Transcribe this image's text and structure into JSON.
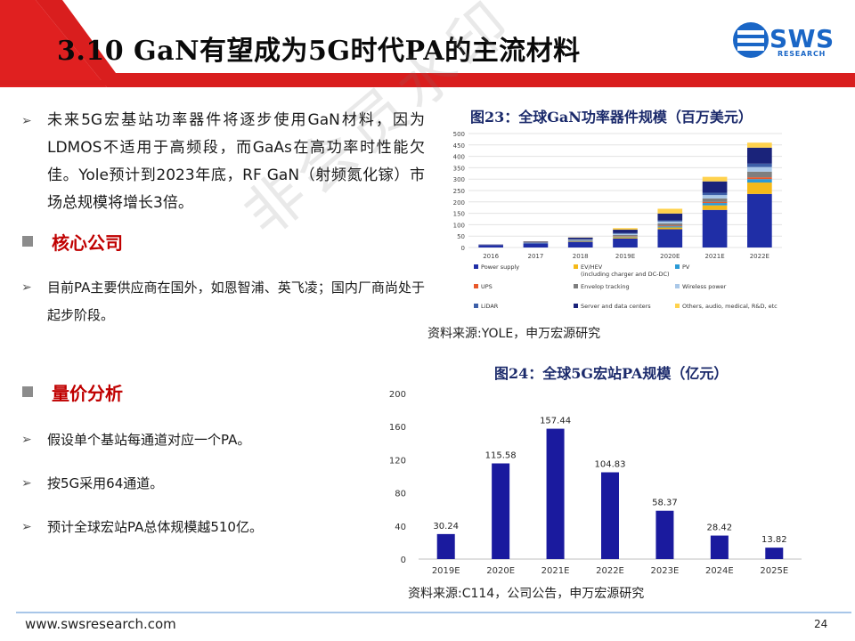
{
  "header": {
    "title": "3.10 GaN有望成为5G时代PA的主流材料",
    "logo_text": "SWS",
    "logo_sub": "RESEARCH",
    "colors": {
      "red_band": "#d91e1e",
      "logo_blue": "#1a66c6"
    }
  },
  "left": {
    "para1": "未来5G宏基站功率器件将逐步使用GaN材料，因为LDMOS不适用于高频段，而GaAs在高功率时性能欠佳。Yole预计到2023年底，RF GaN（射频氮化镓）市场总规模将增长3倍。",
    "section1": "核心公司",
    "para2": "目前PA主要供应商在国外，如恩智浦、英飞凌；国内厂商尚处于起步阶段。",
    "section2": "量价分析",
    "bullets": [
      "假设单个基站每通道对应一个PA。",
      "按5G采用64通道。",
      "预计全球宏站PA总体规模越510亿。"
    ],
    "bullet_glyph": "➢"
  },
  "fig23": {
    "title": "图23：全球GaN功率器件规模（百万美元）",
    "source": "资料来源:YOLE，申万宏源研究"
  },
  "fig24": {
    "title": "图24：全球5G宏站PA规模（亿元）",
    "source": "资料来源:C114，公司公告，申万宏源研究"
  },
  "chart_data": [
    {
      "type": "bar",
      "stacked": true,
      "title": "图23：全球GaN功率器件规模（百万美元）",
      "categories": [
        "2016",
        "2017",
        "2018",
        "2019E",
        "2020E",
        "2021E",
        "2022E"
      ],
      "ylim": [
        0,
        500
      ],
      "yticks": [
        0,
        50,
        100,
        150,
        200,
        250,
        300,
        350,
        400,
        450,
        500
      ],
      "legend_position": "bottom",
      "series": [
        {
          "name": "Power supply",
          "color": "#1f2ea6",
          "values": [
            10,
            18,
            25,
            40,
            80,
            165,
            235
          ]
        },
        {
          "name": "EV/HEV\n(including charger and DC-DC)",
          "color": "#f5b918",
          "values": [
            0,
            0,
            2,
            5,
            8,
            20,
            50
          ]
        },
        {
          "name": "PV",
          "color": "#2a9ad6",
          "values": [
            0,
            1,
            2,
            3,
            5,
            10,
            15
          ]
        },
        {
          "name": "UPS",
          "color": "#e8582a",
          "values": [
            0,
            0,
            1,
            2,
            3,
            5,
            8
          ]
        },
        {
          "name": "Envelop tracking",
          "color": "#7f7f7f",
          "values": [
            1,
            2,
            3,
            5,
            10,
            15,
            25
          ]
        },
        {
          "name": "Wireless power",
          "color": "#aac8e8",
          "values": [
            0,
            1,
            2,
            5,
            8,
            15,
            20
          ]
        },
        {
          "name": "LiDAR",
          "color": "#3d5fa8",
          "values": [
            0,
            0,
            1,
            3,
            5,
            10,
            15
          ]
        },
        {
          "name": "Server and data centers",
          "color": "#1a237a",
          "values": [
            2,
            4,
            8,
            15,
            30,
            50,
            70
          ]
        },
        {
          "name": "Others, audio, medical, R&D, etc",
          "color": "#ffd24d",
          "values": [
            0,
            1,
            1,
            7,
            21,
            20,
            22
          ]
        }
      ]
    },
    {
      "type": "bar",
      "title": "图24：全球5G宏站PA规模（亿元）",
      "categories": [
        "2019E",
        "2020E",
        "2021E",
        "2022E",
        "2023E",
        "2024E",
        "2025E"
      ],
      "values": [
        30.24,
        115.58,
        157.44,
        104.83,
        58.37,
        28.42,
        13.82
      ],
      "value_labels": [
        "30.24",
        "115.58",
        "157.44",
        "104.83",
        "58.37",
        "28.42",
        "13.82"
      ],
      "ylim": [
        0,
        200
      ],
      "yticks": [
        0,
        40,
        80,
        120,
        160,
        200
      ],
      "bar_color": "#1a1a9e",
      "grid": false
    }
  ],
  "footer": {
    "url": "www.swsresearch.com",
    "page": "24"
  }
}
